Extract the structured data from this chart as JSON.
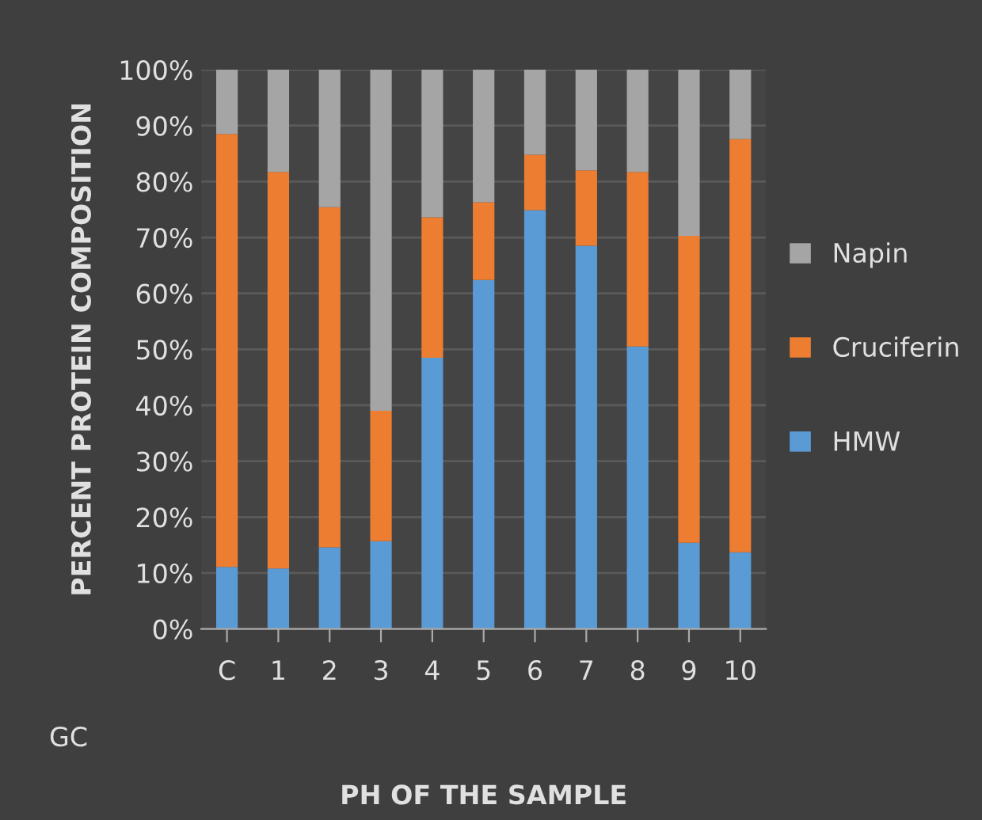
{
  "chart_data": {
    "type": "bar",
    "stacked": true,
    "xlabel": "PH OF THE SAMPLE",
    "ylabel": "PERCENT PROTEIN COMPOSITION",
    "categories": [
      "C",
      "1",
      "2",
      "3",
      "4",
      "5",
      "6",
      "7",
      "8",
      "9",
      "10"
    ],
    "series": [
      {
        "name": "HMW",
        "color": "#5b9bd5",
        "values": [
          11.1,
          10.8,
          14.6,
          15.7,
          48.5,
          62.4,
          74.9,
          68.5,
          50.5,
          15.4,
          13.7
        ]
      },
      {
        "name": "Cruciferin",
        "color": "#ed7d31",
        "values": [
          77.4,
          70.9,
          60.8,
          23.3,
          25.1,
          13.9,
          9.9,
          13.5,
          31.2,
          54.9,
          73.9
        ]
      },
      {
        "name": "Napin",
        "color": "#a5a5a5",
        "values": [
          11.5,
          18.3,
          24.6,
          61.0,
          26.4,
          23.7,
          15.2,
          18.0,
          18.3,
          29.7,
          12.4
        ]
      }
    ],
    "ylim": [
      0,
      100
    ],
    "yticks": [
      {
        "value": 0,
        "label": "0%"
      },
      {
        "value": 10,
        "label": "10%"
      },
      {
        "value": 20,
        "label": "20%"
      },
      {
        "value": 30,
        "label": "30%"
      },
      {
        "value": 40,
        "label": "40%"
      },
      {
        "value": 50,
        "label": "50%"
      },
      {
        "value": 60,
        "label": "60%"
      },
      {
        "value": 70,
        "label": "70%"
      },
      {
        "value": 80,
        "label": "80%"
      },
      {
        "value": 90,
        "label": "90%"
      },
      {
        "value": 100,
        "label": "100%"
      }
    ],
    "grid": "y",
    "legend": "right",
    "annotations": [
      "GC"
    ]
  }
}
